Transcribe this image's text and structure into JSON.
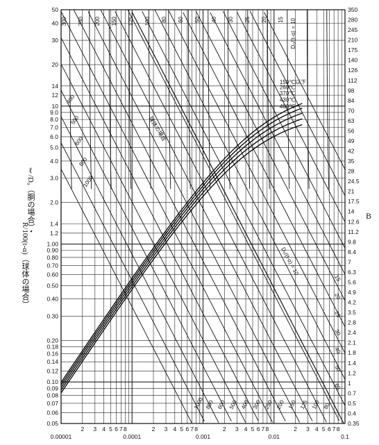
{
  "chart_data": {
    "type": "line",
    "title": "",
    "xscale": "log",
    "yscale": "log",
    "xlim": [
      1e-05,
      0.1
    ],
    "ylim": [
      0.05,
      50
    ],
    "x_tick_major": [
      "0.00001",
      "0.0001",
      "0.001",
      "0.01",
      "0.1"
    ],
    "x_tick_minor": [
      "2",
      "3",
      "4",
      "5",
      "6",
      "7",
      "8"
    ],
    "y_ticks_left": [
      "50",
      "40",
      "30",
      "20",
      "14",
      "12",
      "10",
      "9.0",
      "8.0",
      "7.0",
      "6.0",
      "5.0",
      "4.0",
      "3.0",
      "2.0",
      "1.4",
      "1.2",
      "1.00",
      "0.90",
      "0.80",
      "0.70",
      "0.60",
      "0.50",
      "0.40",
      "0.30",
      "0.20",
      "0.18",
      "0.16",
      "0.14",
      "0.12",
      "0.10",
      "0.09",
      "0.08",
      "0.07",
      "0.06",
      "0.05"
    ],
    "y_ticks_right": [
      "350",
      "280",
      "245",
      "210",
      "175",
      "140",
      "126",
      "112",
      "98",
      "84",
      "70",
      "63",
      "56",
      "49",
      "42",
      "35",
      "28",
      "24.5",
      "21",
      "17.5",
      "14",
      "12.6",
      "11.2",
      "9.8",
      "8.4",
      "7",
      "6.3",
      "5.6",
      "4.9",
      "4.2",
      "3.5",
      "2.8",
      "2.4",
      "2.1",
      "1.8",
      "1.4",
      "1.2",
      "1",
      "0.7",
      "0.5",
      "0.4",
      "0.35"
    ],
    "ylabel_left_line1": "ℓ/D₀（胴の場合）・",
    "ylabel_left_line2": "R/100(t-α)（球体の場合）",
    "ylabel_right": "B",
    "family_top_label": "D₀/(t-α) = 10",
    "family_top_values": [
      "300",
      "250",
      "200",
      "150",
      "125",
      "100",
      "80",
      "60",
      "50",
      "40",
      "30",
      "25",
      "20",
      "15"
    ],
    "family_left_values": [
      "400",
      "500",
      "600",
      "800",
      "1000"
    ],
    "family_mid_label": "D₀/(t-α) = 10",
    "family_mid_values": [
      "15",
      "20",
      "25",
      "30",
      "40",
      "50",
      "60"
    ],
    "family_bottom_values": [
      "1000",
      "800",
      "600",
      "500",
      "400",
      "300",
      "250",
      "200",
      "150",
      "125",
      "100",
      "80"
    ],
    "sphere_label": "球体の場合",
    "temperature_curves": [
      {
        "name": "150℃以下"
      },
      {
        "name": "260℃"
      },
      {
        "name": "370℃"
      },
      {
        "name": "430℃"
      },
      {
        "name": "480℃"
      }
    ]
  }
}
